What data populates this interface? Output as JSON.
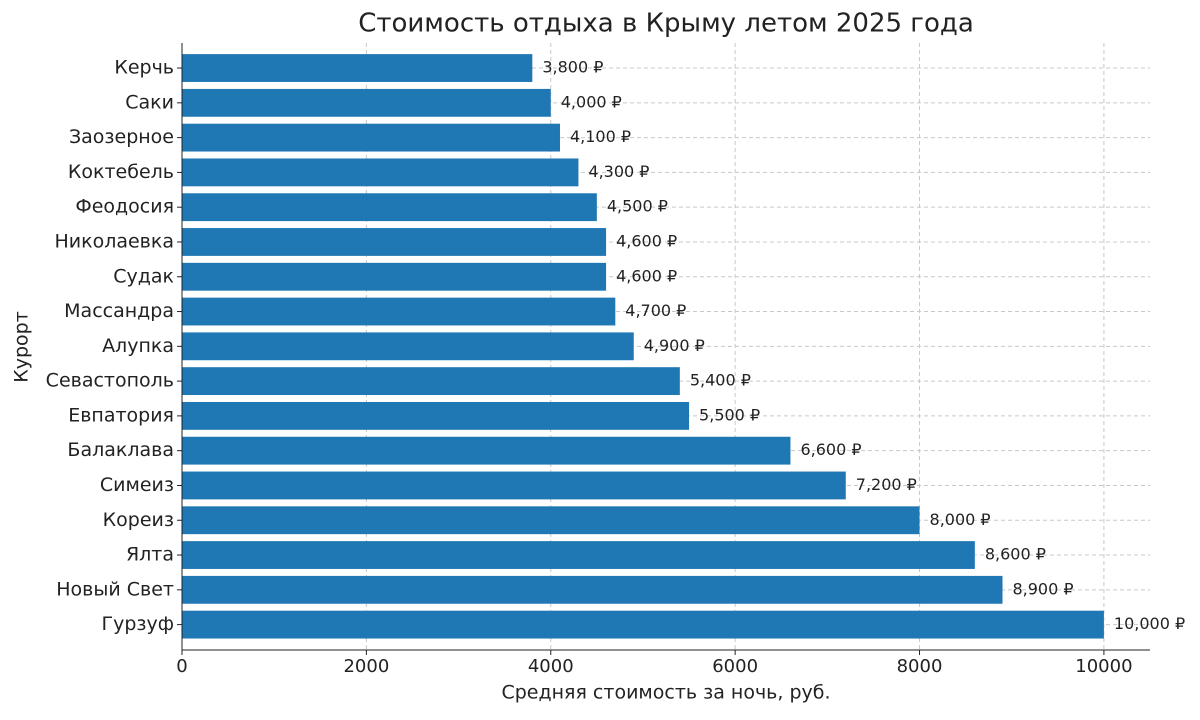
{
  "chart_data": {
    "type": "barh",
    "title": "Стоимость отдыха в Крыму летом 2025 года",
    "x_label": "Средняя стоимость за ночь, руб.",
    "y_label": "Курорт",
    "categories": [
      "Керчь",
      "Саки",
      "Заозерное",
      "Коктебель",
      "Феодосия",
      "Николаевка",
      "Судак",
      "Массандра",
      "Алупка",
      "Севастополь",
      "Евпатория",
      "Балаклава",
      "Симеиз",
      "Кореиз",
      "Ялта",
      "Новый Свет",
      "Гурзуф"
    ],
    "values": [
      3800,
      4000,
      4100,
      4300,
      4500,
      4600,
      4600,
      4700,
      4900,
      5400,
      5500,
      6600,
      7200,
      8000,
      8600,
      8900,
      10000
    ],
    "value_labels": [
      "3,800 ₽",
      "4,000 ₽",
      "4,100 ₽",
      "4,300 ₽",
      "4,500 ₽",
      "4,600 ₽",
      "4,600 ₽",
      "4,700 ₽",
      "4,900 ₽",
      "5,400 ₽",
      "5,500 ₽",
      "6,600 ₽",
      "7,200 ₽",
      "8,000 ₽",
      "8,600 ₽",
      "8,900 ₽",
      "10,000 ₽"
    ],
    "color": "#1f77b4",
    "xlim": [
      0,
      10500
    ],
    "xticks": [
      0,
      2000,
      4000,
      6000,
      8000,
      10000
    ],
    "grid": true
  }
}
